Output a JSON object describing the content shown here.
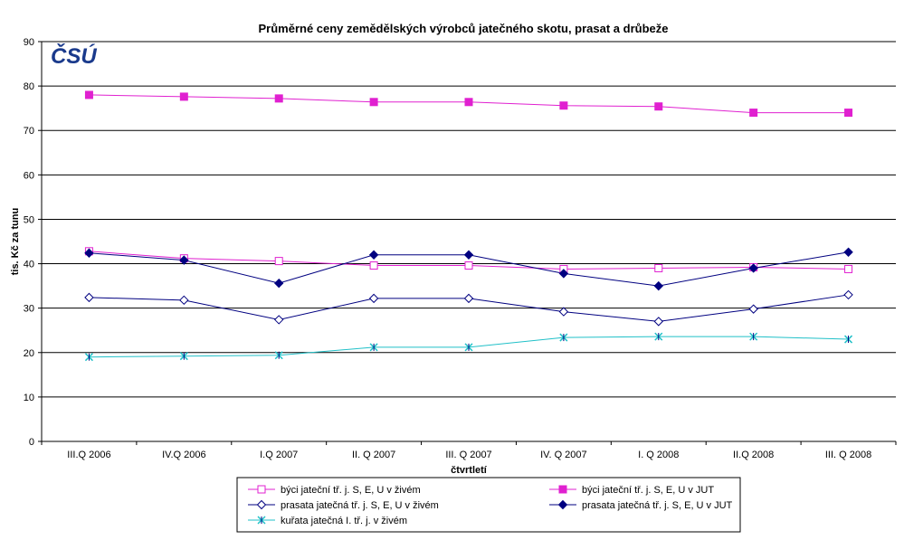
{
  "chart_data": {
    "type": "line",
    "title": "Průměrné ceny zemědělských výrobců jatečného skotu, prasat a drůbeže",
    "xlabel": "čtvrtletí",
    "ylabel": "tis. Kč za tunu",
    "ylim": [
      0,
      90
    ],
    "yticks": [
      0,
      10,
      20,
      30,
      40,
      50,
      60,
      70,
      80,
      90
    ],
    "grid": true,
    "legend_position": "bottom",
    "logo": "ČSÚ",
    "categories": [
      "III.Q 2006",
      "IV.Q 2006",
      "I.Q 2007",
      "II. Q 2007",
      "III. Q 2007",
      "IV. Q 2007",
      "I. Q 2008",
      "II.Q 2008",
      "III. Q 2008"
    ],
    "series": [
      {
        "name": "býci jateční tř. j. S, E, U v živém",
        "values": [
          42.8,
          41.2,
          40.6,
          39.6,
          39.6,
          38.8,
          39.0,
          39.2,
          38.8
        ],
        "color": "#e020d0",
        "marker": "square-open"
      },
      {
        "name": "býci jateční tř. j. S, E, U v JUT",
        "values": [
          78.0,
          77.6,
          77.2,
          76.4,
          76.4,
          75.6,
          75.4,
          74.0,
          74.0
        ],
        "color": "#e020d0",
        "marker": "square-filled"
      },
      {
        "name": "prasata jatečná tř. j. S, E, U v živém",
        "values": [
          32.4,
          31.8,
          27.4,
          32.2,
          32.2,
          29.2,
          27.0,
          29.8,
          33.0
        ],
        "color": "#000080",
        "marker": "diamond-open"
      },
      {
        "name": "prasata jatečná tř. j. S, E, U v JUT",
        "values": [
          42.4,
          40.8,
          35.6,
          42.0,
          42.0,
          37.8,
          35.0,
          39.0,
          42.6
        ],
        "color": "#000080",
        "marker": "diamond-filled"
      },
      {
        "name": "kuřata jatečná I. tř. j. v živém",
        "values": [
          19.0,
          19.2,
          19.4,
          21.2,
          21.2,
          23.4,
          23.6,
          23.6,
          23.0
        ],
        "color": "#20c0c8",
        "marker": "asterisk"
      }
    ]
  }
}
